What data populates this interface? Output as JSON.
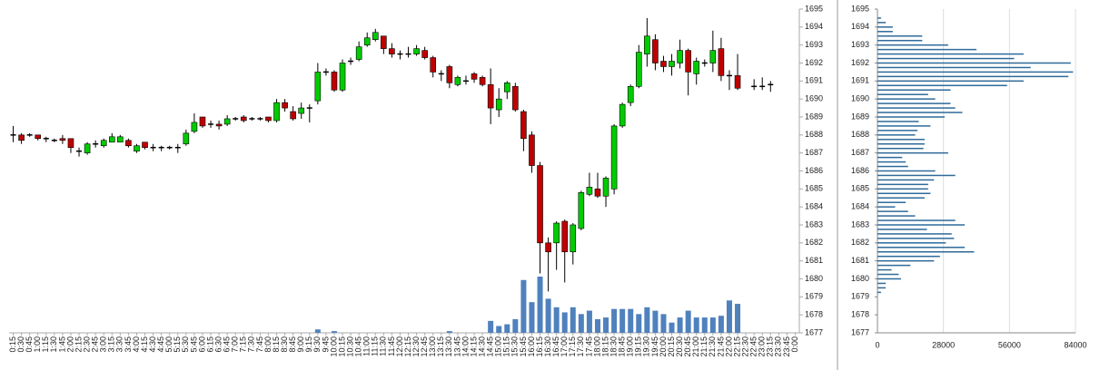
{
  "chart_data": [
    {
      "type": "candlestick",
      "categories": [
        "0:15",
        "0:30",
        "0:45",
        "1:00",
        "1:15",
        "1:30",
        "1:45",
        "2:00",
        "2:15",
        "2:30",
        "2:45",
        "3:00",
        "3:15",
        "3:30",
        "3:45",
        "4:00",
        "4:15",
        "4:30",
        "4:45",
        "5:00",
        "5:15",
        "5:30",
        "5:45",
        "6:00",
        "6:15",
        "6:30",
        "6:45",
        "7:00",
        "7:15",
        "7:30",
        "7:45",
        "8:00",
        "8:15",
        "8:30",
        "8:45",
        "9:00",
        "9:15",
        "9:30",
        "9:45",
        "10:00",
        "10:15",
        "10:30",
        "10:45",
        "11:00",
        "11:15",
        "11:30",
        "11:45",
        "12:00",
        "12:15",
        "12:30",
        "12:45",
        "13:00",
        "13:15",
        "13:30",
        "13:45",
        "14:00",
        "14:15",
        "14:30",
        "14:45",
        "15:00",
        "15:15",
        "15:30",
        "15:45",
        "16:00",
        "16:15",
        "16:30",
        "16:45",
        "17:00",
        "17:15",
        "17:30",
        "17:45",
        "18:00",
        "18:15",
        "18:30",
        "18:45",
        "19:00",
        "19:15",
        "19:30",
        "19:45",
        "20:00",
        "20:15",
        "20:30",
        "20:45",
        "21:00",
        "21:15",
        "21:30",
        "21:45",
        "22:00",
        "22:15",
        "22:30",
        "22:45",
        "23:00",
        "23:15",
        "23:30",
        "23:45",
        "0:00"
      ],
      "open": [
        1688,
        1688,
        1688,
        1688,
        1687.8,
        1687.7,
        1687.8,
        1687.8,
        1687.1,
        1687,
        1687.5,
        1687.4,
        1687.6,
        1687.6,
        1687.7,
        1687.1,
        1687.6,
        1687.3,
        1687.3,
        1687.3,
        1687.3,
        1687.5,
        1688.2,
        1689,
        1688.6,
        1688.6,
        1688.6,
        1688.9,
        1689,
        1688.9,
        1688.9,
        1689,
        1688.8,
        1689.8,
        1689.3,
        1689.2,
        1689.5,
        1689.9,
        1691.5,
        1691.5,
        1690.5,
        1692.1,
        1692.2,
        1693,
        1693.3,
        1693.5,
        1692.8,
        1692.5,
        1692.5,
        1692.5,
        1692.7,
        1692.3,
        1691.4,
        1691.8,
        1690.8,
        1691,
        1691.4,
        1691.2,
        1690.8,
        1689.4,
        1690.4,
        1690.7,
        1689.3,
        1688,
        1686.3,
        1682,
        1682,
        1683.2,
        1681.5,
        1682.8,
        1684.7,
        1685,
        1684.6,
        1685,
        1688.5,
        1689.8,
        1690.7,
        1692.5,
        1693.3,
        1692.1,
        1691.8,
        1692,
        1692.7,
        1691.4,
        1692,
        1692,
        1692.8,
        1691.3,
        1691.3,
        null,
        1690.7,
        1690.7,
        1690.8,
        null,
        null,
        null
      ],
      "high": [
        1688.5,
        1688.1,
        1688.1,
        1688,
        1687.9,
        1687.8,
        1688,
        1687.8,
        1687.3,
        1687.6,
        1687.7,
        1687.8,
        1688.1,
        1688,
        1687.8,
        1687.5,
        1687.6,
        1687.5,
        1687.4,
        1687.4,
        1687.5,
        1688.3,
        1689.2,
        1689,
        1688.8,
        1688.8,
        1689.1,
        1689,
        1689.1,
        1689,
        1689,
        1689,
        1690,
        1690,
        1689.6,
        1689.8,
        1689.7,
        1692,
        1691.7,
        1691.6,
        1692.2,
        1692.3,
        1693.2,
        1693.7,
        1693.9,
        1693.5,
        1693.1,
        1692.7,
        1692.9,
        1693,
        1692.9,
        1692.4,
        1691.6,
        1691.9,
        1691.3,
        1691.3,
        1691.5,
        1691.3,
        1691.7,
        1690.6,
        1691,
        1690.9,
        1689.4,
        1688.2,
        1686.5,
        1682.3,
        1683.2,
        1683.3,
        1683.1,
        1684.9,
        1685.9,
        1685.9,
        1685.7,
        1688.6,
        1689.8,
        1690.8,
        1693,
        1694.5,
        1693.6,
        1692.4,
        1692.5,
        1693.3,
        1692.8,
        1692.3,
        1692.2,
        1693.8,
        1693.4,
        1691.6,
        1692.5,
        null,
        1691.1,
        1691.2,
        1691,
        null,
        null,
        null
      ],
      "low": [
        1687.6,
        1687.5,
        1687.9,
        1687.7,
        1687.6,
        1687.6,
        1687.5,
        1687,
        1686.8,
        1686.9,
        1687.3,
        1687.3,
        1687.6,
        1687.6,
        1687.3,
        1687,
        1687.2,
        1687.1,
        1687.1,
        1687.2,
        1687,
        1687.4,
        1688.1,
        1688.4,
        1688.4,
        1688.3,
        1688.5,
        1688.8,
        1688.7,
        1688.8,
        1688.8,
        1688.7,
        1688.7,
        1689.3,
        1688.8,
        1688.9,
        1688.7,
        1689.7,
        1691.3,
        1690.4,
        1690.4,
        1691.9,
        1692.1,
        1692.9,
        1693.2,
        1692.5,
        1692.3,
        1692.2,
        1692.3,
        1692.4,
        1692.2,
        1691.2,
        1691,
        1690.6,
        1690.7,
        1690.8,
        1690.9,
        1690.7,
        1688.6,
        1689,
        1690,
        1689.3,
        1687.1,
        1685.9,
        1680.3,
        1679.3,
        1680.5,
        1679.8,
        1680.8,
        1682.7,
        1684.6,
        1684.5,
        1684,
        1684.7,
        1688.4,
        1689.6,
        1690.6,
        1691.8,
        1691.6,
        1691.5,
        1691.3,
        1691.7,
        1690.2,
        1690.8,
        1691.8,
        1691.5,
        1691,
        1690.5,
        1690.5,
        null,
        1690.5,
        1690.5,
        1690.4,
        null,
        null,
        null
      ],
      "close": [
        1688,
        1687.7,
        1688,
        1687.8,
        1687.8,
        1687.7,
        1687.7,
        1687.3,
        1687.1,
        1687.5,
        1687.5,
        1687.7,
        1687.9,
        1687.9,
        1687.4,
        1687.4,
        1687.3,
        1687.3,
        1687.3,
        1687.3,
        1687.3,
        1688.1,
        1688.7,
        1688.5,
        1688.6,
        1688.5,
        1688.9,
        1688.9,
        1688.8,
        1688.9,
        1688.9,
        1688.8,
        1689.8,
        1689.5,
        1688.9,
        1689.5,
        1689.5,
        1691.5,
        1691.5,
        1690.5,
        1692,
        1692.1,
        1692.9,
        1693.4,
        1693.7,
        1692.8,
        1692.5,
        1692.5,
        1692.5,
        1692.8,
        1692.3,
        1691.5,
        1691.4,
        1690.9,
        1691.2,
        1691,
        1691.1,
        1690.8,
        1689.5,
        1690,
        1690.9,
        1689.4,
        1687.8,
        1686.3,
        1682,
        1681.5,
        1683.1,
        1681.5,
        1683,
        1684.8,
        1685.1,
        1684.6,
        1685.6,
        1688.5,
        1689.7,
        1690.7,
        1692.6,
        1693.5,
        1692,
        1691.8,
        1692.1,
        1692.7,
        1691.5,
        1692.1,
        1692,
        1692.7,
        1691.3,
        1691.3,
        1690.6,
        null,
        1690.7,
        1690.7,
        1690.8,
        null,
        null,
        null
      ],
      "volume": [
        0,
        0,
        0,
        0,
        0,
        0,
        0,
        0,
        0,
        0,
        0,
        0,
        0,
        0,
        0,
        0,
        0,
        0,
        0,
        0,
        0,
        0,
        0,
        0,
        0,
        0,
        0,
        0,
        0,
        0,
        0,
        0,
        0,
        0,
        0,
        0,
        0,
        2,
        0,
        1,
        0,
        0,
        0,
        0,
        0,
        0,
        0,
        0,
        0,
        0,
        0,
        0,
        0,
        1,
        0,
        0,
        0,
        0,
        7,
        4,
        5,
        8,
        31,
        18,
        33,
        20,
        15,
        12,
        15,
        11,
        13,
        8,
        9,
        14,
        14,
        14,
        11,
        15,
        13,
        11,
        6,
        9,
        13,
        9,
        9,
        9,
        10,
        19,
        17,
        null,
        0,
        0,
        0,
        null,
        null,
        null
      ],
      "up_color": "#00cc00",
      "down_color": "#c00000",
      "volume_color": "#4f81bd",
      "ylim": [
        1677,
        1695
      ],
      "yticks": [
        1677,
        1678,
        1679,
        1680,
        1681,
        1682,
        1683,
        1684,
        1685,
        1686,
        1687,
        1688,
        1689,
        1690,
        1691,
        1692,
        1693,
        1694,
        1695
      ]
    },
    {
      "type": "hbar",
      "y": [
        1694.5,
        1694.25,
        1694,
        1693.75,
        1693.5,
        1693.25,
        1693,
        1692.75,
        1692.5,
        1692.25,
        1692,
        1691.75,
        1691.5,
        1691.25,
        1691,
        1690.75,
        1690.5,
        1690.25,
        1690,
        1689.75,
        1689.5,
        1689.25,
        1689,
        1688.75,
        1688.5,
        1688.25,
        1688,
        1687.75,
        1687.5,
        1687.25,
        1687,
        1686.75,
        1686.5,
        1686.25,
        1686,
        1685.75,
        1685.5,
        1685.25,
        1685,
        1684.75,
        1684.5,
        1684.25,
        1684,
        1683.75,
        1683.5,
        1683.25,
        1683,
        1682.75,
        1682.5,
        1682.25,
        1682,
        1681.75,
        1681.5,
        1681.25,
        1681,
        1680.75,
        1680.5,
        1680.25,
        1680,
        1679.75,
        1679.5,
        1679.25
      ],
      "values": [
        1500,
        3500,
        6500,
        6500,
        19000,
        19000,
        30000,
        42000,
        62000,
        58000,
        82000,
        65000,
        83000,
        81000,
        62000,
        55000,
        31000,
        21500,
        24500,
        31000,
        33000,
        36000,
        28500,
        17500,
        22500,
        17000,
        16000,
        20000,
        20000,
        19500,
        30000,
        10500,
        12000,
        13000,
        24500,
        33000,
        24000,
        21500,
        21500,
        22500,
        20000,
        12000,
        7500,
        13000,
        16000,
        33000,
        37000,
        21000,
        31500,
        32500,
        29000,
        37000,
        41000,
        26500,
        24000,
        14000,
        6000,
        9000,
        10000,
        3500,
        3500,
        1500
      ],
      "color": "#2e6a9a",
      "xlim": [
        0,
        84000
      ],
      "xticks": [
        0,
        28000,
        56000,
        84000
      ],
      "ylim": [
        1677,
        1695
      ],
      "yticks": [
        1677,
        1678,
        1679,
        1680,
        1681,
        1682,
        1683,
        1684,
        1685,
        1686,
        1687,
        1688,
        1689,
        1690,
        1691,
        1692,
        1693,
        1694,
        1695
      ],
      "grid": true
    }
  ]
}
